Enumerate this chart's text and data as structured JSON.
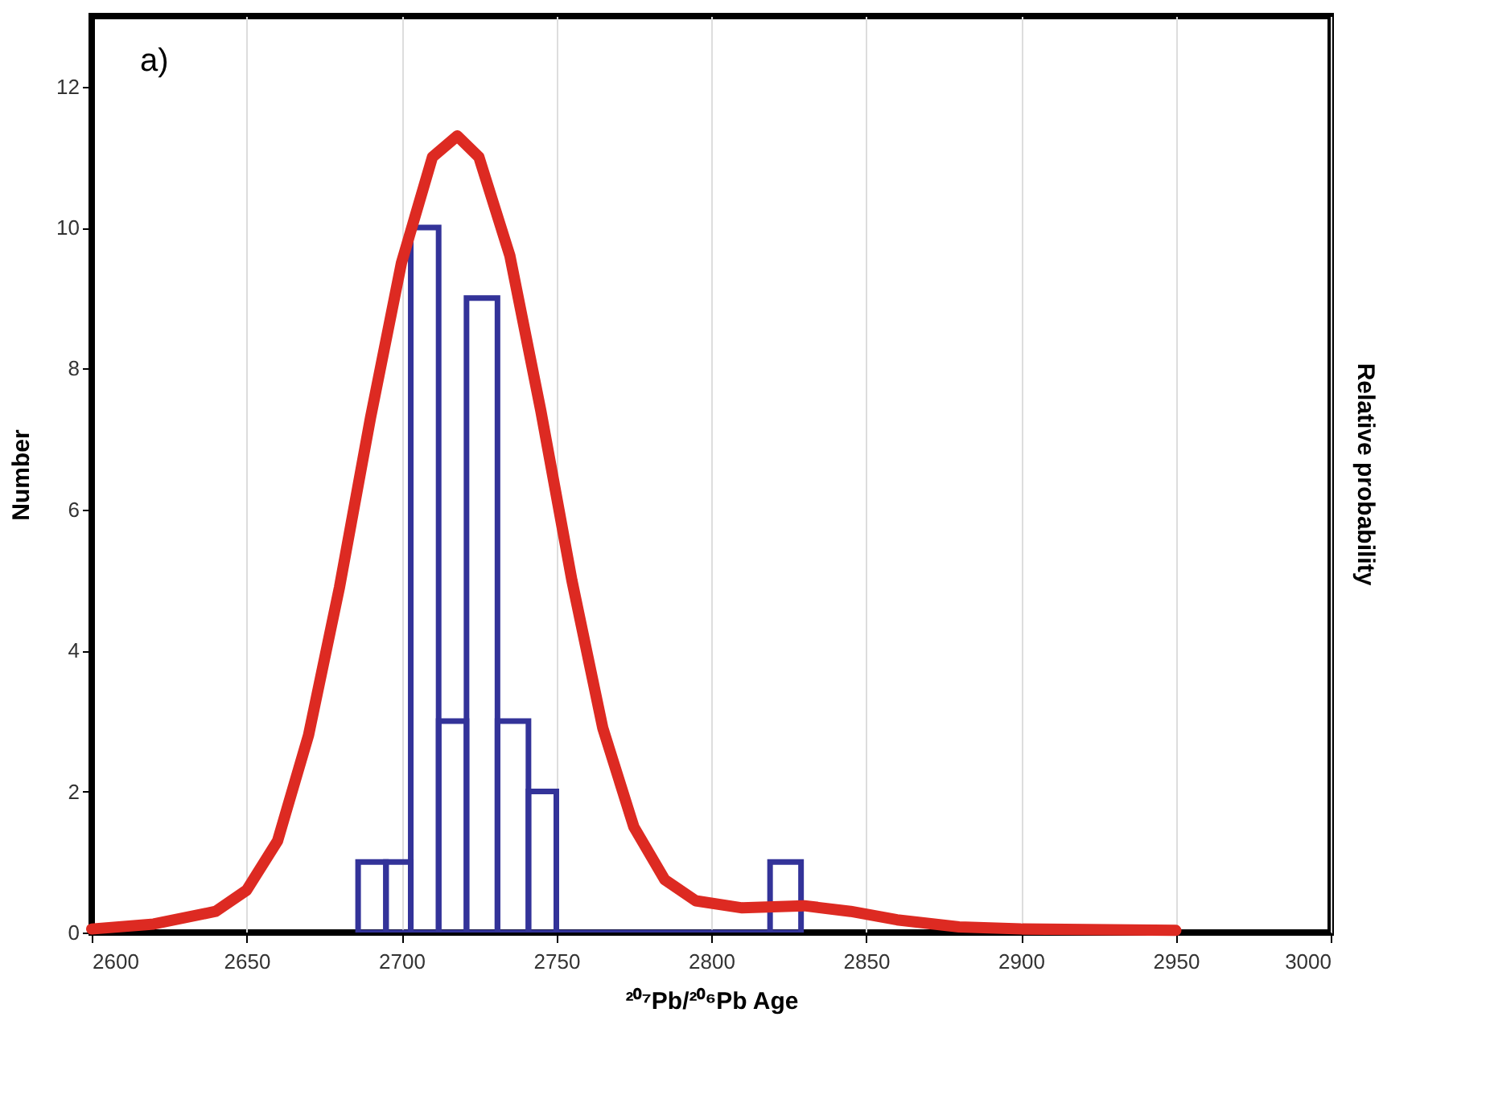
{
  "chart_data": {
    "type": "histogram",
    "xlabel": "²⁰⁷Pb/²⁰⁶Pb Age",
    "ylabel": "Number",
    "y2label": "Relative probability",
    "annotations": [
      "a)"
    ],
    "bins": [
      2686,
      2695,
      2703,
      2712,
      2721,
      2731,
      2741,
      2750,
      2819,
      2829
    ],
    "values": [
      1,
      1,
      10,
      3,
      9,
      3,
      2,
      0,
      1
    ],
    "color": "#333399",
    "series": [
      {
        "type": "line",
        "color": "#dd2a22",
        "x": [
          2600,
          2620,
          2640,
          2650,
          2660,
          2670,
          2680,
          2690,
          2700,
          2710,
          2718,
          2725,
          2735,
          2745,
          2755,
          2765,
          2775,
          2785,
          2795,
          2810,
          2830,
          2845,
          2860,
          2880,
          2900,
          2950
        ],
        "values": [
          0.05,
          0.12,
          0.3,
          0.6,
          1.3,
          2.8,
          4.9,
          7.3,
          9.5,
          11.0,
          11.3,
          11.0,
          9.6,
          7.4,
          5.0,
          2.9,
          1.5,
          0.75,
          0.45,
          0.35,
          0.38,
          0.3,
          0.18,
          0.08,
          0.05,
          0.03
        ]
      }
    ],
    "xlim": [
      2600,
      3000
    ],
    "xticks": [
      2600,
      2650,
      2700,
      2750,
      2800,
      2850,
      2900,
      2950,
      3000
    ],
    "ylim": [
      0,
      13
    ],
    "yticks": [
      0,
      2,
      4,
      6,
      8,
      10,
      12
    ],
    "grid": "x"
  }
}
